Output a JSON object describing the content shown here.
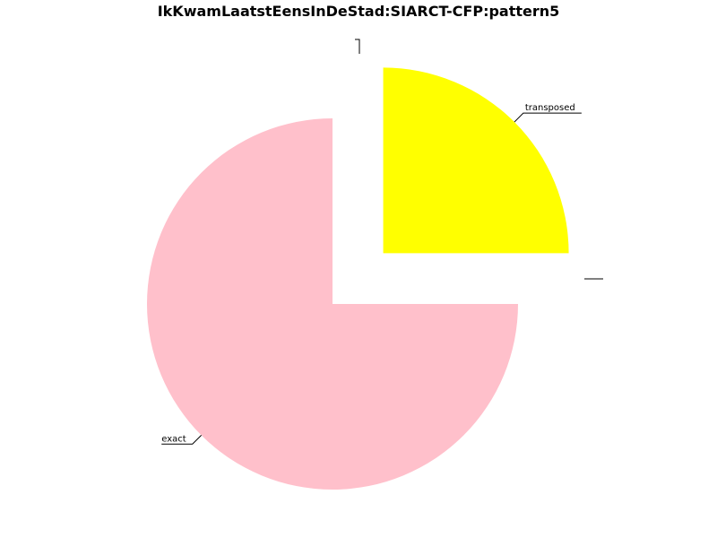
{
  "chart_data": {
    "type": "pie",
    "title": "IkKwamLaatstEensInDeStad:SIARCT-CFP:pattern5",
    "slices": [
      {
        "label": "transposed",
        "value": 25,
        "color": "#ffff00",
        "exploded": true
      },
      {
        "label": "exact",
        "value": 75,
        "color": "#ffc0cb",
        "exploded": false
      }
    ]
  }
}
